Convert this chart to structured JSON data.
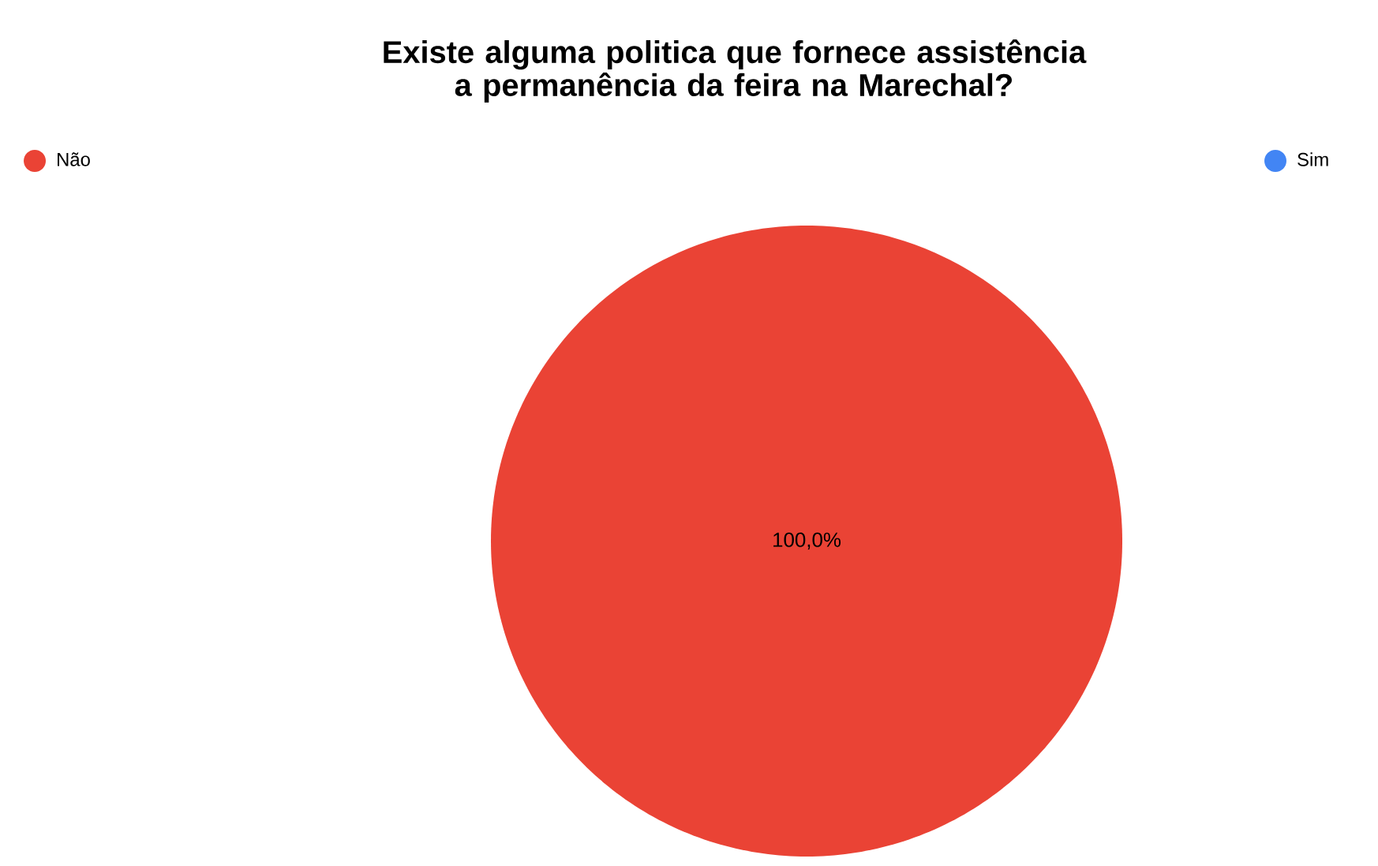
{
  "chart_data": {
    "type": "pie",
    "title": "Existe alguma politica que fornece assistência a permanência da feira na Marechal?",
    "categories": [
      "Não",
      "Sim"
    ],
    "values": [
      100,
      0
    ],
    "colors": [
      "#ea4335",
      "#4285f4"
    ],
    "value_labels": [
      "100,0%",
      null
    ],
    "legend": "top"
  }
}
